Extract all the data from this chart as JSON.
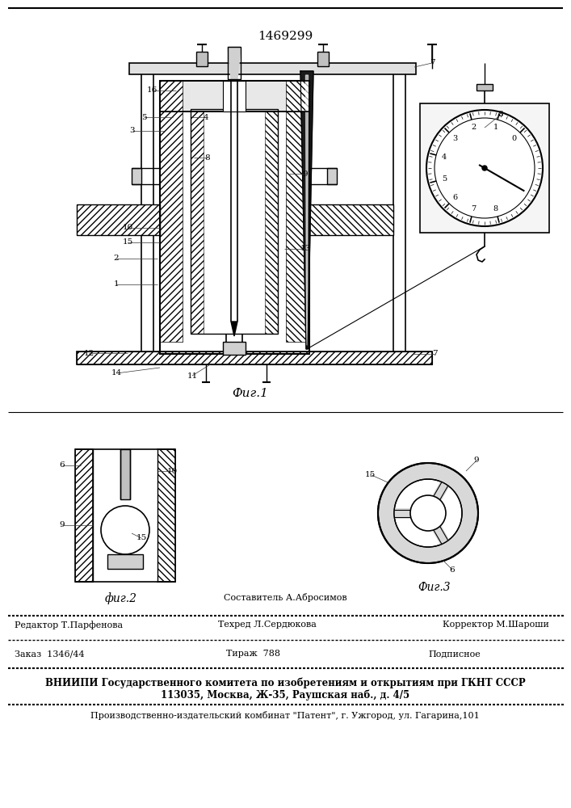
{
  "patent_number": "1469299",
  "fig1_label": "Фиг.1",
  "fig2_label": "фиг.2",
  "fig3_label": "Фиг.3",
  "footer_line1_col1": "Редактор Т.Парфенова",
  "footer_line1_col2": "Составитель А.Абросимов\nТехред Л.Сердюкова",
  "footer_line1_col3": "Корректор М.Шароши",
  "footer_line2_col1": "Заказ  1346/44",
  "footer_line2_col2": "Тираж  788",
  "footer_line2_col3": "Подписное",
  "footer_line3": "ВНИИПИ Государственного комитета по изобретениям и открытиям при ГКНТ СССР\n113035, Москва, Ж-35, Раушская наб., д. 4/5",
  "footer_line4": "Производственно-издательский комбинат \"Патент\", г. Ужгород, ул. Гагарина,101",
  "bg_color": "#ffffff",
  "line_color": "#000000"
}
